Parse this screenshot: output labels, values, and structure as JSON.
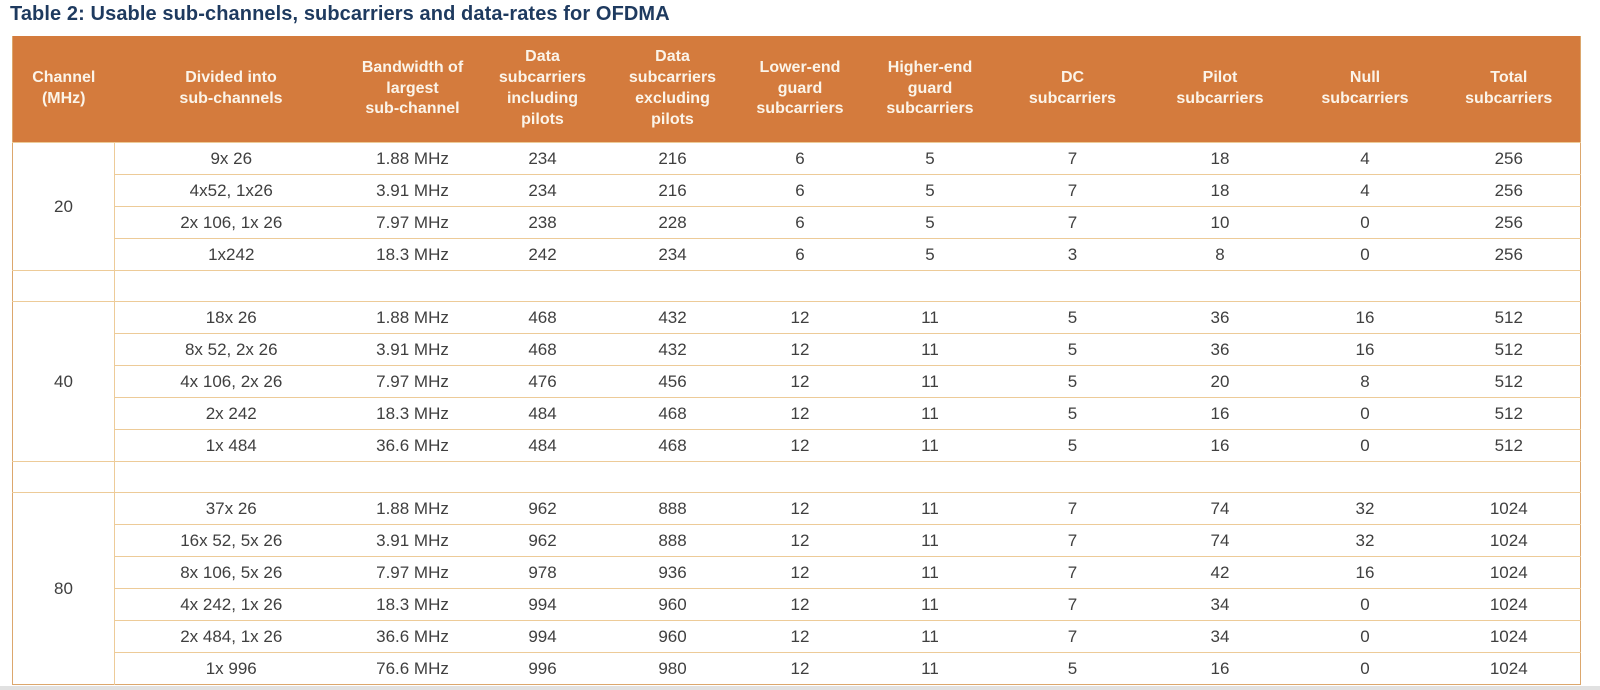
{
  "title": "Table 2: Usable sub-channels, subcarriers and data-rates for OFDMA",
  "colors": {
    "header_bg": "#D47B3D",
    "header_text": "#FBF4E9",
    "title_text": "#1E3A5F",
    "border_outer": "#DCA76D",
    "border_inner": "#EDCB98",
    "body_text": "#3F3F3F"
  },
  "chart_data": {
    "type": "table",
    "title": "Table 2: Usable sub-channels, subcarriers and data-rates for OFDMA",
    "headers": [
      "Channel\n(MHz)",
      "Divided into\nsub-channels",
      "Bandwidth of\nlargest\nsub-channel",
      "Data\nsubcarriers\nincluding\npilots",
      "Data\nsubcarriers\nexcluding\npilots",
      "Lower-end\nguard\nsubcarriers",
      "Higher-end\nguard\nsubcarriers",
      "DC\nsubcarriers",
      "Pilot\nsubcarriers",
      "Null\nsubcarriers",
      "Total\nsubcarriers"
    ],
    "blocks": [
      {
        "channel": "20",
        "rows": [
          [
            "9x 26",
            "1.88 MHz",
            "234",
            "216",
            "6",
            "5",
            "7",
            "18",
            "4",
            "256"
          ],
          [
            "4x52, 1x26",
            "3.91 MHz",
            "234",
            "216",
            "6",
            "5",
            "7",
            "18",
            "4",
            "256"
          ],
          [
            "2x 106, 1x 26",
            "7.97 MHz",
            "238",
            "228",
            "6",
            "5",
            "7",
            "10",
            "0",
            "256"
          ],
          [
            "1x242",
            "18.3 MHz",
            "242",
            "234",
            "6",
            "5",
            "3",
            "8",
            "0",
            "256"
          ]
        ]
      },
      {
        "channel": "40",
        "rows": [
          [
            "18x 26",
            "1.88 MHz",
            "468",
            "432",
            "12",
            "11",
            "5",
            "36",
            "16",
            "512"
          ],
          [
            "8x 52, 2x 26",
            "3.91 MHz",
            "468",
            "432",
            "12",
            "11",
            "5",
            "36",
            "16",
            "512"
          ],
          [
            "4x 106, 2x 26",
            "7.97 MHz",
            "476",
            "456",
            "12",
            "11",
            "5",
            "20",
            "8",
            "512"
          ],
          [
            "2x 242",
            "18.3 MHz",
            "484",
            "468",
            "12",
            "11",
            "5",
            "16",
            "0",
            "512"
          ],
          [
            "1x 484",
            "36.6 MHz",
            "484",
            "468",
            "12",
            "11",
            "5",
            "16",
            "0",
            "512"
          ]
        ]
      },
      {
        "channel": "80",
        "rows": [
          [
            "37x 26",
            "1.88 MHz",
            "962",
            "888",
            "12",
            "11",
            "7",
            "74",
            "32",
            "1024"
          ],
          [
            "16x 52, 5x 26",
            "3.91 MHz",
            "962",
            "888",
            "12",
            "11",
            "7",
            "74",
            "32",
            "1024"
          ],
          [
            "8x 106, 5x 26",
            "7.97 MHz",
            "978",
            "936",
            "12",
            "11",
            "7",
            "42",
            "16",
            "1024"
          ],
          [
            "4x 242, 1x 26",
            "18.3 MHz",
            "994",
            "960",
            "12",
            "11",
            "7",
            "34",
            "0",
            "1024"
          ],
          [
            "2x 484, 1x 26",
            "36.6 MHz",
            "994",
            "960",
            "12",
            "11",
            "7",
            "34",
            "0",
            "1024"
          ],
          [
            "1x 996",
            "76.6 MHz",
            "996",
            "980",
            "12",
            "11",
            "5",
            "16",
            "0",
            "1024"
          ]
        ]
      }
    ]
  }
}
